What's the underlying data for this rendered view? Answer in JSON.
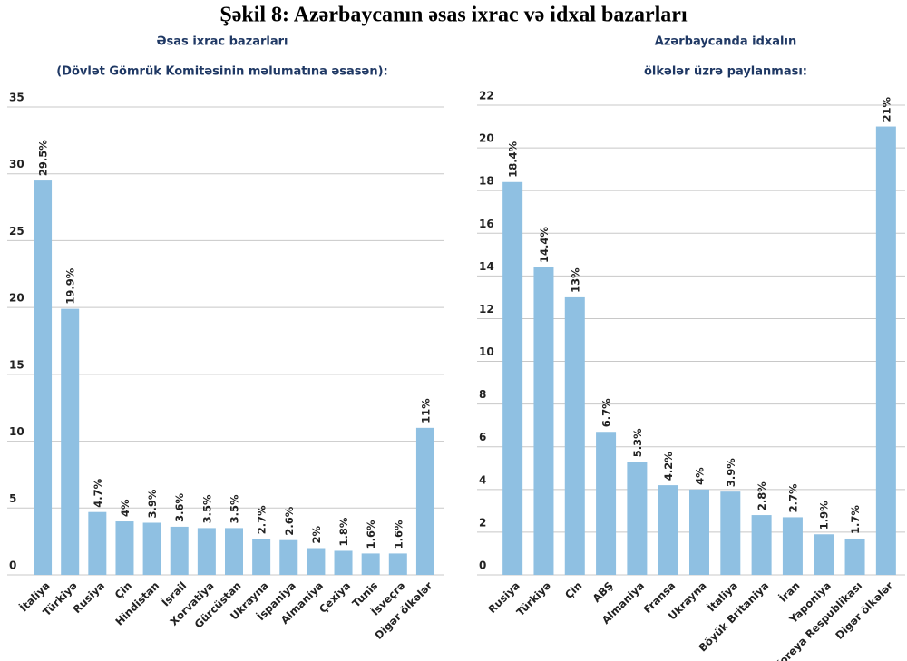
{
  "title": "Şəkil 8: Azərbaycanın əsas ixrac və idxal bazarları",
  "chart_data": [
    {
      "type": "bar",
      "title": "Əsas ixrac bazarları",
      "subtitle": "(Dövlət Gömrük Komitəsinin məlumatına əsasən):",
      "categories": [
        "İtaliya",
        "Türkiyə",
        "Rusiya",
        "Çin",
        "Hindistan",
        "İsrail",
        "Xorvatiya",
        "Gürcüstan",
        "Ukrayna",
        "İspaniya",
        "Almaniya",
        "Çexiya",
        "Tunis",
        "İsveçrə",
        "Digər ölkələr"
      ],
      "values": [
        29.5,
        19.9,
        4.7,
        4,
        3.9,
        3.6,
        3.5,
        3.5,
        2.7,
        2.6,
        2,
        1.8,
        1.6,
        1.6,
        11
      ],
      "value_labels": [
        "29.5%",
        "19.9%",
        "4.7%",
        "4%",
        "3.9%",
        "3.6%",
        "3.5%",
        "3.5%",
        "2.7%",
        "2.6%",
        "2%",
        "1.8%",
        "1.6%",
        "1.6%",
        "11%"
      ],
      "color": "#8fc0e2",
      "ylim": [
        0,
        35
      ],
      "yticks": [
        0,
        5,
        10,
        15,
        20,
        25,
        30,
        35
      ],
      "grid": true
    },
    {
      "type": "bar",
      "title": "Azərbaycanda idxalın",
      "subtitle": "ölkələr üzrə paylanması:",
      "categories": [
        "Rusiya",
        "Türkiyə",
        "Çin",
        "ABŞ",
        "Almaniya",
        "Fransa",
        "Ukrayna",
        "İtaliya",
        "Böyük Britaniya",
        "İran",
        "Yaponiya",
        "Koreya Respublikası",
        "Digər ölkələr"
      ],
      "values": [
        18.4,
        14.4,
        13,
        6.7,
        5.3,
        4.2,
        4,
        3.9,
        2.8,
        2.7,
        1.9,
        1.7,
        21
      ],
      "value_labels": [
        "18.4%",
        "14.4%",
        "13%",
        "6.7%",
        "5.3%",
        "4.2%",
        "4%",
        "3.9%",
        "2.8%",
        "2.7%",
        "1.9%",
        "1.7%",
        "21%"
      ],
      "color": "#8fc0e2",
      "ylim": [
        0,
        22
      ],
      "yticks": [
        0,
        2,
        4,
        6,
        8,
        10,
        12,
        14,
        16,
        18,
        20,
        22
      ],
      "grid": true
    }
  ]
}
